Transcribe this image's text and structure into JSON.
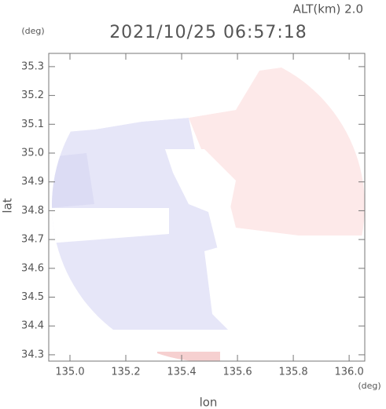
{
  "chart_data": {
    "type": "radar-scan",
    "title": "2021/10/25 06:57:18",
    "subtitle": "ALT(km) 2.0",
    "x_label": "lon",
    "y_label": "lat",
    "x_unit": "(deg)",
    "y_unit": "(deg)",
    "xlim": [
      134.924,
      136.056
    ],
    "ylim": [
      34.278,
      35.346
    ],
    "xticks": [
      {
        "value": 135.0,
        "label": "135.0"
      },
      135.2,
      135.4,
      135.6,
      135.8,
      {
        "value": 136.0,
        "label": "136.0"
      }
    ],
    "yticks": [
      34.3,
      34.4,
      34.5,
      34.6,
      34.7,
      34.8,
      34.9,
      {
        "value": 35.0,
        "label": "35.0"
      },
      35.1,
      35.2,
      35.3
    ]
  }
}
